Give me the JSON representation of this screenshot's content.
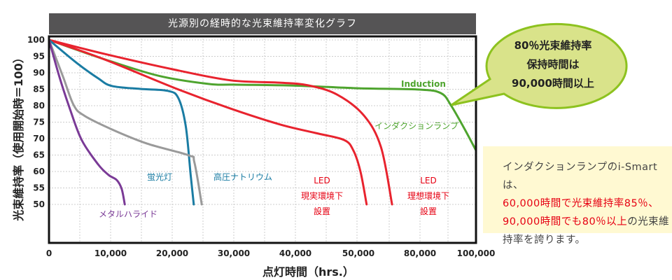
{
  "chart_data": {
    "type": "line",
    "title": "光源別の経時的な光束維持率変化グラフ",
    "xlabel": "点灯時間（hrs.）",
    "ylabel": "光束維持率（使用開始時＝100）",
    "x_ticks": [
      0,
      10000,
      20000,
      30000,
      40000,
      50000,
      80000,
      100000
    ],
    "x_tick_labels": [
      "0",
      "10,000",
      "20,000",
      "30,000",
      "40,000",
      "50,000",
      "80,000",
      "100,000"
    ],
    "y_ticks": [
      100,
      95,
      90,
      85,
      80,
      75,
      70,
      65,
      60,
      55,
      50
    ],
    "ylim": [
      38,
      100
    ],
    "xlim": [
      0,
      100000
    ],
    "grid": true,
    "series": [
      {
        "color": "#4ea42e",
        "points": [
          [
            0,
            100
          ],
          [
            4500,
            97
          ],
          [
            10000,
            93.5
          ],
          [
            18000,
            89
          ],
          [
            26000,
            86.6
          ],
          [
            30000,
            86.4
          ],
          [
            40000,
            86.1
          ],
          [
            50000,
            85.3
          ],
          [
            80000,
            84.9
          ],
          [
            87500,
            83.8
          ],
          [
            91000,
            80.2
          ],
          [
            96000,
            72.8
          ],
          [
            100000,
            66.4
          ]
        ]
      },
      {
        "color": "#e8232e",
        "points": [
          [
            0,
            100
          ],
          [
            9100,
            95.7
          ],
          [
            20500,
            90.9
          ],
          [
            29500,
            87.7
          ],
          [
            37500,
            87
          ],
          [
            42000,
            86.2
          ],
          [
            46600,
            83.4
          ],
          [
            52700,
            77
          ],
          [
            61000,
            67.4
          ],
          [
            66400,
            50
          ]
        ]
      },
      {
        "color": "#e8232e",
        "points": [
          [
            0,
            100
          ],
          [
            9100,
            94
          ],
          [
            20500,
            85.3
          ],
          [
            29500,
            79.1
          ],
          [
            37500,
            74.3
          ],
          [
            43200,
            71.7
          ],
          [
            47700,
            69.6
          ],
          [
            49200,
            66.4
          ],
          [
            51000,
            60
          ],
          [
            54000,
            50
          ]
        ]
      },
      {
        "color": "#1a7ca3",
        "points": [
          [
            0,
            100
          ],
          [
            4500,
            93
          ],
          [
            8000,
            88.3
          ],
          [
            10200,
            86
          ],
          [
            14800,
            85.1
          ],
          [
            19300,
            84.5
          ],
          [
            21000,
            82.3
          ],
          [
            22200,
            73.8
          ],
          [
            23000,
            58.9
          ],
          [
            23500,
            50
          ]
        ]
      },
      {
        "color": "#9a9a9a",
        "points": [
          [
            0,
            100
          ],
          [
            2300,
            88.7
          ],
          [
            4000,
            80.2
          ],
          [
            5700,
            77
          ],
          [
            10200,
            72.8
          ],
          [
            15900,
            68.5
          ],
          [
            22700,
            64.9
          ],
          [
            23600,
            62.8
          ],
          [
            24800,
            50
          ]
        ]
      },
      {
        "color": "#7a3a96",
        "points": [
          [
            0,
            100
          ],
          [
            1700,
            88.7
          ],
          [
            3400,
            79
          ],
          [
            5300,
            69.6
          ],
          [
            8000,
            62.1
          ],
          [
            9700,
            58.9
          ],
          [
            11000,
            57.4
          ],
          [
            11800,
            54.7
          ],
          [
            12300,
            50
          ]
        ]
      }
    ],
    "annotations": [
      {
        "text": "Induction",
        "color": "#4ea42e"
      },
      {
        "text": "インダクションランプ",
        "color": "#4ea42e"
      },
      {
        "text": "蛍光灯",
        "color": "#1a7ca3"
      },
      {
        "text": "高圧ナトリウム",
        "color": "#1a7ca3"
      },
      {
        "text": "LED",
        "color": "#e60012"
      },
      {
        "text": "現実環境下",
        "color": "#e60012"
      },
      {
        "text": "設置",
        "color": "#e60012"
      },
      {
        "text": "LED",
        "color": "#e60012"
      },
      {
        "text": "理想環境下",
        "color": "#e60012"
      },
      {
        "text": "設置",
        "color": "#e60012"
      },
      {
        "text": "メタルハライド",
        "color": "#7a3a96"
      }
    ]
  },
  "callout": {
    "line1": "80％光束維持率",
    "line2": "保持時間は",
    "line3": "90,000時間以上",
    "fill": "#d9e38a",
    "stroke": "#8dc21f"
  },
  "note": {
    "part1": "インダクションランプのi-Smartは、",
    "part2": "60,000時間で光束維持率85％、",
    "part3": "90,000時間でも80％以上",
    "part4": "の光束維持率を誇ります。"
  }
}
